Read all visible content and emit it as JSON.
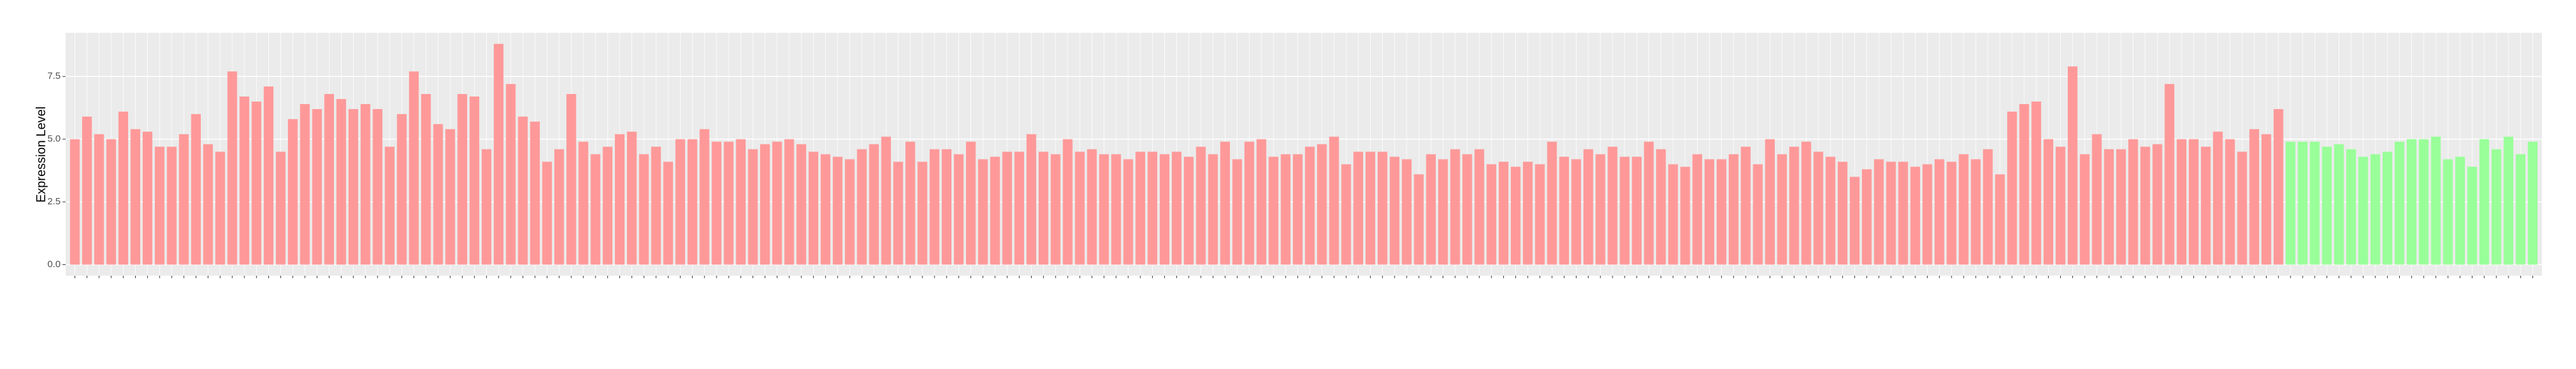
{
  "chart_data": {
    "type": "bar",
    "y_label": "Expression Level",
    "values": [
      5.0,
      5.9,
      5.2,
      5.0,
      6.1,
      5.4,
      5.3,
      4.7,
      4.7,
      5.2,
      6.0,
      4.8,
      4.5,
      7.7,
      6.7,
      6.5,
      7.1,
      4.5,
      5.8,
      6.4,
      6.2,
      6.8,
      6.6,
      6.2,
      6.4,
      6.2,
      4.7,
      6.0,
      7.7,
      6.8,
      5.6,
      5.4,
      6.8,
      6.7,
      4.6,
      8.8,
      7.2,
      5.9,
      5.7,
      4.1,
      4.6,
      6.8,
      4.9,
      4.4,
      4.7,
      5.2,
      5.3,
      4.4,
      4.7,
      4.1,
      5.0,
      5.0,
      5.4,
      4.9,
      4.9,
      5.0,
      4.6,
      4.8,
      4.9,
      5.0,
      4.8,
      4.5,
      4.4,
      4.3,
      4.2,
      4.6,
      4.8,
      5.1,
      4.1,
      4.9,
      4.1,
      4.6,
      4.6,
      4.4,
      4.9,
      4.2,
      4.3,
      4.5,
      4.5,
      5.2,
      4.5,
      4.4,
      5.0,
      4.5,
      4.6,
      4.4,
      4.4,
      4.2,
      4.5,
      4.5,
      4.4,
      4.5,
      4.3,
      4.7,
      4.4,
      4.9,
      4.2,
      4.9,
      5.0,
      4.3,
      4.4,
      4.4,
      4.7,
      4.8,
      5.1,
      4.0,
      4.5,
      4.5,
      4.5,
      4.3,
      4.2,
      3.6,
      4.4,
      4.2,
      4.6,
      4.4,
      4.6,
      4.0,
      4.1,
      3.9,
      4.1,
      4.0,
      4.9,
      4.3,
      4.2,
      4.6,
      4.4,
      4.7,
      4.3,
      4.3,
      4.9,
      4.6,
      4.0,
      3.9,
      4.4,
      4.2,
      4.2,
      4.4,
      4.7,
      4.0,
      5.0,
      4.4,
      4.7,
      4.9,
      4.5,
      4.3,
      4.1,
      3.5,
      3.8,
      4.2,
      4.1,
      4.1,
      3.9,
      4.0,
      4.2,
      4.1,
      4.4,
      4.2,
      4.6,
      3.6,
      6.1,
      6.4,
      6.5,
      5.0,
      4.7,
      7.9,
      4.4,
      5.2,
      4.6,
      4.6,
      5.0,
      4.7,
      4.8,
      7.2,
      5.0,
      5.0,
      4.7,
      5.3,
      5.0,
      4.5,
      5.4,
      5.2,
      6.2,
      4.9,
      4.9,
      4.9,
      4.7,
      4.8,
      4.6,
      4.3,
      4.4,
      4.5,
      4.9,
      5.0,
      5.0,
      5.1,
      4.2,
      4.3,
      3.9,
      5.0,
      4.6,
      5.1,
      4.4,
      4.9
    ],
    "color": "#ff9999",
    "second_color": "#99ff99",
    "second_count": 21,
    "ylim": [
      -0.44,
      9.24
    ],
    "yticks": [
      {
        "value": 0,
        "label": "0.0"
      },
      2.5,
      {
        "value": 5,
        "label": "5.0"
      },
      7.5
    ],
    "grid": true
  }
}
